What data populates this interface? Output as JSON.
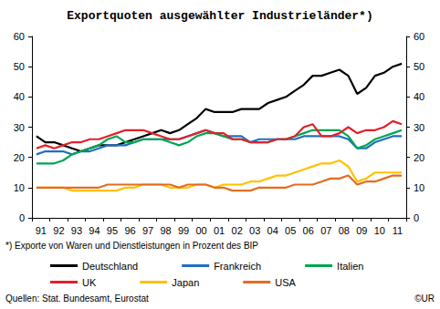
{
  "chart_data": {
    "type": "line",
    "title": "Exportquoten ausgewählter Industrieländer*)",
    "footnote": "*) Exporte von Waren und Dienstleistungen in Prozent des BIP",
    "source": "Quellen: Stat. Bundesamt, Eurostat",
    "copyright": "©UR",
    "categories": [
      "91",
      null,
      "92",
      null,
      "93",
      null,
      "94",
      null,
      "95",
      null,
      "96",
      null,
      "97",
      null,
      "98",
      null,
      "99",
      null,
      "00",
      null,
      "01",
      null,
      "02",
      null,
      "03",
      null,
      "04",
      null,
      "05",
      null,
      "06",
      null,
      "07",
      null,
      "08",
      null,
      "09",
      null,
      "10",
      null,
      "11",
      null
    ],
    "series": [
      {
        "name": "Deutschland",
        "color": "#000000",
        "values": [
          27,
          25,
          25,
          24,
          23,
          22,
          23,
          24,
          24,
          24,
          25,
          26,
          27,
          28,
          29,
          28,
          29,
          31,
          33,
          36,
          35,
          35,
          35,
          36,
          36,
          36,
          38,
          39,
          40,
          42,
          44,
          47,
          47,
          48,
          49,
          47,
          41,
          43,
          47,
          48,
          50,
          51
        ]
      },
      {
        "name": "Frankreich",
        "color": "#1f6fc0",
        "values": [
          21,
          22,
          22,
          22,
          21,
          22,
          22,
          23,
          24,
          24,
          24,
          25,
          26,
          26,
          26,
          26,
          26,
          27,
          28,
          29,
          28,
          27,
          27,
          27,
          25,
          26,
          26,
          26,
          26,
          26,
          27,
          27,
          27,
          27,
          27,
          26,
          23,
          23,
          25,
          26,
          27,
          27
        ]
      },
      {
        "name": "Italien",
        "color": "#00a650",
        "values": [
          18,
          18,
          18,
          19,
          21,
          22,
          23,
          24,
          26,
          27,
          25,
          25,
          26,
          26,
          26,
          25,
          24,
          25,
          27,
          28,
          28,
          27,
          26,
          26,
          25,
          25,
          25,
          26,
          26,
          27,
          28,
          29,
          29,
          29,
          29,
          27,
          23,
          24,
          26,
          27,
          28,
          29
        ]
      },
      {
        "name": "UK",
        "color": "#e3202a",
        "values": [
          23,
          24,
          23,
          24,
          25,
          25,
          26,
          26,
          27,
          28,
          29,
          29,
          29,
          28,
          27,
          26,
          26,
          27,
          28,
          29,
          28,
          28,
          26,
          26,
          25,
          25,
          25,
          26,
          26,
          27,
          30,
          31,
          27,
          27,
          28,
          30,
          28,
          29,
          29,
          30,
          32,
          31
        ]
      },
      {
        "name": "Japan",
        "color": "#ffc000",
        "values": [
          10,
          10,
          10,
          10,
          9,
          9,
          9,
          9,
          9,
          9,
          10,
          10,
          11,
          11,
          11,
          10,
          10,
          10,
          11,
          11,
          10,
          11,
          11,
          11,
          12,
          12,
          13,
          14,
          14,
          15,
          16,
          17,
          18,
          18,
          19,
          17,
          12,
          13,
          15,
          15,
          15,
          15
        ]
      },
      {
        "name": "USA",
        "color": "#e46c1e",
        "values": [
          10,
          10,
          10,
          10,
          10,
          10,
          10,
          10,
          11,
          11,
          11,
          11,
          11,
          11,
          11,
          11,
          10,
          11,
          11,
          11,
          10,
          10,
          9,
          9,
          9,
          10,
          10,
          10,
          10,
          11,
          11,
          11,
          12,
          13,
          13,
          14,
          11,
          12,
          12,
          13,
          14,
          14
        ]
      }
    ],
    "ylim": [
      0,
      60
    ],
    "yticks": [
      0,
      10,
      20,
      30,
      40,
      50,
      60
    ],
    "y2lim": [
      0,
      60
    ],
    "y2ticks": [
      0,
      10,
      20,
      30,
      40,
      50,
      60
    ],
    "grid": false,
    "legend": "bottom"
  }
}
